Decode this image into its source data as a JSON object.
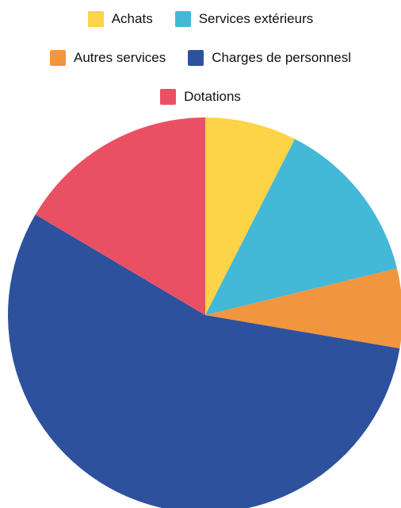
{
  "chart_data": {
    "type": "pie",
    "title": "",
    "legend_position": "top",
    "start_angle_deg": 0,
    "direction": "clockwise",
    "slices": [
      {
        "label": "Achats",
        "value": 7.5,
        "color": "#FDD348"
      },
      {
        "label": "Services extérieurs",
        "value": 13.7,
        "color": "#43B8D7"
      },
      {
        "label": "Autres services",
        "value": 6.5,
        "color": "#F1953F"
      },
      {
        "label": "Charges de personnesl",
        "value": 55.8,
        "color": "#2E519E"
      },
      {
        "label": "Dotations",
        "value": 16.5,
        "color": "#EA5064"
      }
    ]
  }
}
